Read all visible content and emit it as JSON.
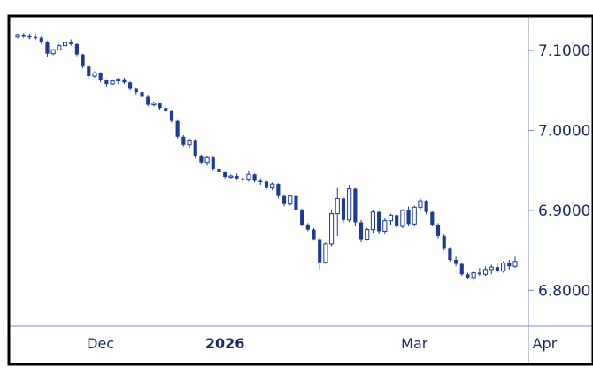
{
  "chart_data": {
    "type": "candlestick",
    "title": "",
    "xlabel": "",
    "ylabel": "",
    "ylim": [
      6.765,
      7.14
    ],
    "y_ticks": [
      "7.1000",
      "7.0000",
      "6.9000",
      "6.8000"
    ],
    "y_tick_values": [
      7.1,
      7.0,
      6.9,
      6.8
    ],
    "x_ticks": [
      {
        "label": "Dec",
        "index": 14,
        "bold": false
      },
      {
        "label": "2026",
        "index": 35,
        "bold": true
      },
      {
        "label": "Mar",
        "index": 67,
        "bold": false
      },
      {
        "label": "Apr",
        "index": 89,
        "bold": false
      }
    ],
    "candles": [
      [
        7.117,
        7.121,
        7.115,
        7.119
      ],
      [
        7.119,
        7.122,
        7.116,
        7.118
      ],
      [
        7.118,
        7.121,
        7.114,
        7.117
      ],
      [
        7.117,
        7.12,
        7.113,
        7.116
      ],
      [
        7.116,
        7.118,
        7.108,
        7.11
      ],
      [
        7.11,
        7.112,
        7.092,
        7.096
      ],
      [
        7.096,
        7.102,
        7.094,
        7.101
      ],
      [
        7.101,
        7.108,
        7.1,
        7.106
      ],
      [
        7.106,
        7.112,
        7.104,
        7.11
      ],
      [
        7.11,
        7.114,
        7.106,
        7.108
      ],
      [
        7.108,
        7.109,
        7.093,
        7.095
      ],
      [
        7.095,
        7.096,
        7.078,
        7.08
      ],
      [
        7.08,
        7.081,
        7.065,
        7.068
      ],
      [
        7.068,
        7.074,
        7.066,
        7.072
      ],
      [
        7.072,
        7.073,
        7.06,
        7.063
      ],
      [
        7.063,
        7.064,
        7.055,
        7.058
      ],
      [
        7.058,
        7.064,
        7.057,
        7.062
      ],
      [
        7.062,
        7.066,
        7.058,
        7.064
      ],
      [
        7.064,
        7.066,
        7.058,
        7.06
      ],
      [
        7.06,
        7.061,
        7.05,
        7.052
      ],
      [
        7.052,
        7.054,
        7.045,
        7.048
      ],
      [
        7.048,
        7.05,
        7.04,
        7.042
      ],
      [
        7.042,
        7.044,
        7.03,
        7.032
      ],
      [
        7.032,
        7.036,
        7.03,
        7.034
      ],
      [
        7.034,
        7.035,
        7.026,
        7.028
      ],
      [
        7.028,
        7.03,
        7.022,
        7.025
      ],
      [
        7.025,
        7.026,
        7.01,
        7.012
      ],
      [
        7.012,
        7.013,
        6.99,
        6.992
      ],
      [
        6.992,
        6.994,
        6.98,
        6.982
      ],
      [
        6.982,
        6.99,
        6.978,
        6.988
      ],
      [
        6.988,
        6.989,
        6.965,
        6.968
      ],
      [
        6.968,
        6.97,
        6.958,
        6.96
      ],
      [
        6.96,
        6.968,
        6.956,
        6.966
      ],
      [
        6.966,
        6.968,
        6.95,
        6.952
      ],
      [
        6.952,
        6.953,
        6.945,
        6.948
      ],
      [
        6.948,
        6.949,
        6.94,
        6.942
      ],
      [
        6.942,
        6.945,
        6.94,
        6.943
      ],
      [
        6.943,
        6.946,
        6.938,
        6.94
      ],
      [
        6.94,
        6.942,
        6.935,
        6.938
      ],
      [
        6.938,
        6.95,
        6.936,
        6.945
      ],
      [
        6.945,
        6.946,
        6.935,
        6.937
      ],
      [
        6.937,
        6.94,
        6.932,
        6.936
      ],
      [
        6.936,
        6.937,
        6.926,
        6.928
      ],
      [
        6.928,
        6.935,
        6.925,
        6.933
      ],
      [
        6.933,
        6.934,
        6.915,
        6.918
      ],
      [
        6.918,
        6.92,
        6.905,
        6.908
      ],
      [
        6.908,
        6.92,
        6.906,
        6.918
      ],
      [
        6.918,
        6.919,
        6.898,
        6.9
      ],
      [
        6.9,
        6.902,
        6.88,
        6.882
      ],
      [
        6.882,
        6.884,
        6.874,
        6.876
      ],
      [
        6.876,
        6.878,
        6.862,
        6.864
      ],
      [
        6.864,
        6.866,
        6.826,
        6.835
      ],
      [
        6.835,
        6.86,
        6.833,
        6.858
      ],
      [
        6.858,
        6.9,
        6.855,
        6.896
      ],
      [
        6.896,
        6.928,
        6.868,
        6.915
      ],
      [
        6.915,
        6.916,
        6.885,
        6.888
      ],
      [
        6.888,
        6.932,
        6.885,
        6.927
      ],
      [
        6.927,
        6.928,
        6.88,
        6.885
      ],
      [
        6.885,
        6.888,
        6.86,
        6.864
      ],
      [
        6.864,
        6.878,
        6.862,
        6.876
      ],
      [
        6.876,
        6.9,
        6.872,
        6.898
      ],
      [
        6.898,
        6.899,
        6.87,
        6.874
      ],
      [
        6.874,
        6.89,
        6.87,
        6.887
      ],
      [
        6.887,
        6.896,
        6.882,
        6.894
      ],
      [
        6.894,
        6.895,
        6.878,
        6.88
      ],
      [
        6.88,
        6.902,
        6.878,
        6.9
      ],
      [
        6.9,
        6.905,
        6.88,
        6.883
      ],
      [
        6.883,
        6.906,
        6.88,
        6.904
      ],
      [
        6.904,
        6.915,
        6.9,
        6.912
      ],
      [
        6.912,
        6.913,
        6.895,
        6.898
      ],
      [
        6.898,
        6.899,
        6.88,
        6.882
      ],
      [
        6.882,
        6.884,
        6.865,
        6.868
      ],
      [
        6.868,
        6.87,
        6.85,
        6.852
      ],
      [
        6.852,
        6.854,
        6.836,
        6.838
      ],
      [
        6.838,
        6.842,
        6.83,
        6.833
      ],
      [
        6.833,
        6.834,
        6.818,
        6.82
      ],
      [
        6.82,
        6.822,
        6.814,
        6.816
      ],
      [
        6.816,
        6.824,
        6.812,
        6.822
      ],
      [
        6.822,
        6.828,
        6.818,
        6.82
      ],
      [
        6.82,
        6.83,
        6.818,
        6.826
      ],
      [
        6.826,
        6.832,
        6.82,
        6.829
      ],
      [
        6.829,
        6.833,
        6.822,
        6.824
      ],
      [
        6.824,
        6.836,
        6.822,
        6.834
      ],
      [
        6.834,
        6.838,
        6.826,
        6.83
      ],
      [
        6.83,
        6.842,
        6.828,
        6.836
      ]
    ]
  }
}
